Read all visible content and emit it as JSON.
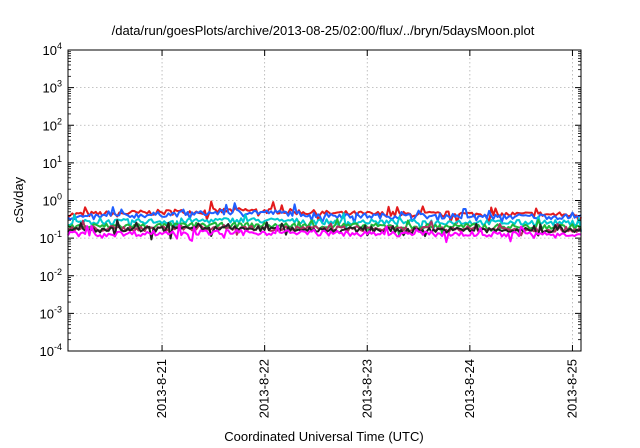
{
  "chart_data": {
    "type": "line",
    "title": "/data/run/goesPlots/archive/2013-08-25/02:00/flux/../bryn/5daysMoon.plot",
    "xlabel": "Coordinated Universal Time (UTC)",
    "ylabel": "cSv/day",
    "yscale": "log",
    "ylim": [
      0.0001,
      10000
    ],
    "y_ticks": [
      {
        "value": 0.0001,
        "base": "10",
        "exp": "-4"
      },
      {
        "value": 0.001,
        "base": "10",
        "exp": "-3"
      },
      {
        "value": 0.01,
        "base": "10",
        "exp": "-2"
      },
      {
        "value": 0.1,
        "base": "10",
        "exp": "-1"
      },
      {
        "value": 1,
        "base": "10",
        "exp": "0"
      },
      {
        "value": 10,
        "base": "10",
        "exp": "1"
      },
      {
        "value": 100,
        "base": "10",
        "exp": "2"
      },
      {
        "value": 1000,
        "base": "10",
        "exp": "3"
      },
      {
        "value": 10000,
        "base": "10",
        "exp": "4"
      }
    ],
    "xlim": [
      "2013-08-20 02:00",
      "2013-08-25 02:00"
    ],
    "x_ticks": [
      {
        "value": "2013-08-21 00:00",
        "label": "2013-8-21"
      },
      {
        "value": "2013-08-22 00:00",
        "label": "2013-8-22"
      },
      {
        "value": "2013-08-23 00:00",
        "label": "2013-8-23"
      },
      {
        "value": "2013-08-24 00:00",
        "label": "2013-8-24"
      },
      {
        "value": "2013-08-25 00:00",
        "label": "2013-8-25"
      }
    ],
    "grid": true,
    "legend": "none",
    "x": [
      "2013-08-20 02:00",
      "2013-08-20 12:00",
      "2013-08-20 22:00",
      "2013-08-21 08:00",
      "2013-08-21 18:00",
      "2013-08-22 04:00",
      "2013-08-22 14:00",
      "2013-08-23 00:00",
      "2013-08-23 10:00",
      "2013-08-23 20:00",
      "2013-08-24 06:00",
      "2013-08-24 16:00",
      "2013-08-25 02:00"
    ],
    "series": [
      {
        "color": "#e31a1c",
        "values": [
          0.42,
          0.45,
          0.48,
          0.5,
          0.55,
          0.52,
          0.46,
          0.44,
          0.43,
          0.44,
          0.42,
          0.43,
          0.41
        ]
      },
      {
        "color": "#1f5fff",
        "values": [
          0.36,
          0.38,
          0.42,
          0.45,
          0.5,
          0.47,
          0.41,
          0.39,
          0.38,
          0.39,
          0.37,
          0.38,
          0.36
        ]
      },
      {
        "color": "#00c8d0",
        "values": [
          0.26,
          0.27,
          0.28,
          0.29,
          0.3,
          0.29,
          0.27,
          0.27,
          0.26,
          0.27,
          0.26,
          0.26,
          0.25
        ]
      },
      {
        "color": "#1db83a",
        "values": [
          0.2,
          0.21,
          0.21,
          0.22,
          0.22,
          0.22,
          0.21,
          0.21,
          0.2,
          0.21,
          0.2,
          0.2,
          0.2
        ]
      },
      {
        "color": "#b03060",
        "values": [
          0.17,
          0.18,
          0.18,
          0.19,
          0.19,
          0.18,
          0.18,
          0.18,
          0.17,
          0.18,
          0.17,
          0.17,
          0.17
        ]
      },
      {
        "color": "#222222",
        "values": [
          0.16,
          0.165,
          0.17,
          0.175,
          0.18,
          0.175,
          0.17,
          0.165,
          0.16,
          0.165,
          0.16,
          0.16,
          0.16
        ]
      },
      {
        "color": "#ff00ff",
        "values": [
          0.13,
          0.13,
          0.135,
          0.14,
          0.14,
          0.14,
          0.135,
          0.13,
          0.13,
          0.13,
          0.125,
          0.13,
          0.13
        ]
      }
    ]
  }
}
